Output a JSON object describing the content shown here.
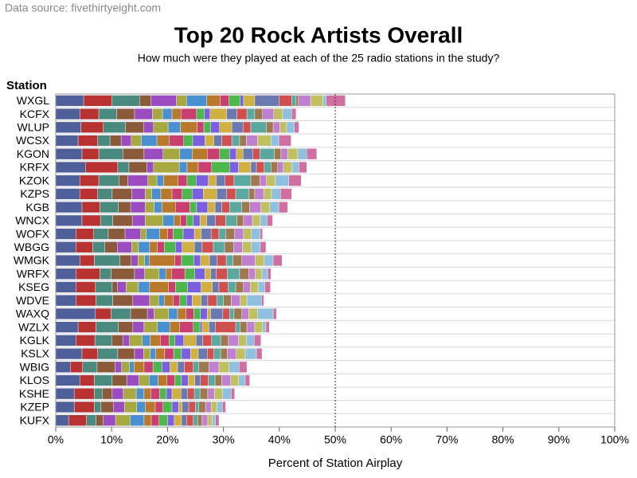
{
  "chart_data": {
    "type": "stacked-bar-horizontal",
    "source": "Data source: fivethirtyeight.com",
    "title": "Top 20 Rock Artists Overall",
    "subtitle": "How much were they played at each of the 25 radio stations in the study?",
    "y_label": "Station",
    "x_label": "Percent of Station Airplay",
    "categories": [
      "WXGL",
      "KCFX",
      "WLUP",
      "WCSX",
      "KGON",
      "KRFX",
      "KZOK",
      "KZPS",
      "KGB",
      "WNCX",
      "WOFX",
      "WBGG",
      "WMGK",
      "WRFX",
      "KSEG",
      "WDVE",
      "WAXQ",
      "WZLX",
      "KGLK",
      "KSLX",
      "WBIG",
      "KLOS",
      "KSHE",
      "KZEP",
      "KUFX"
    ],
    "xlim": [
      0,
      100
    ],
    "xticks": [
      {
        "value": 0,
        "label": "0%"
      },
      {
        "value": 10,
        "label": "10%"
      },
      {
        "value": 20,
        "label": "20%"
      },
      {
        "value": 30,
        "label": "30%"
      },
      {
        "value": 40,
        "label": "40%"
      },
      {
        "value": 50,
        "label": "50%"
      },
      {
        "value": 60,
        "label": "60%"
      },
      {
        "value": 70,
        "label": "70%"
      },
      {
        "value": 80,
        "label": "80%"
      },
      {
        "value": 90,
        "label": "90%"
      },
      {
        "value": 100,
        "label": "100%"
      }
    ],
    "reference_line": 50,
    "grid": true,
    "series": [
      {
        "color": "#4f5f9a",
        "values": [
          5,
          4.3,
          4.5,
          4,
          4.7,
          5.3,
          4.3,
          4.3,
          4.7,
          4.7,
          3.6,
          3.6,
          4.3,
          3.6,
          3.6,
          3.6,
          7.1,
          4,
          3.6,
          4.7,
          2.6,
          4.3,
          3.3,
          3.3,
          2.3
        ]
      },
      {
        "color": "#b83232",
        "values": [
          5,
          3.4,
          4,
          3.5,
          3,
          5.8,
          3.4,
          3.2,
          3.2,
          3.3,
          3.2,
          3,
          2.6,
          4.3,
          3.5,
          3.6,
          2.8,
          3.2,
          3.4,
          2.8,
          2.2,
          2.6,
          3.6,
          3.6,
          3.2
        ]
      },
      {
        "color": "#4a8a7e",
        "values": [
          5,
          3.2,
          4,
          2.2,
          4.3,
          2,
          3.6,
          2.6,
          3.3,
          2.2,
          2.6,
          2.2,
          4.6,
          2,
          3,
          3,
          3.5,
          4,
          3,
          3.6,
          2.6,
          3.2,
          1.4,
          1.2,
          1.7
        ]
      },
      {
        "color": "#8a5a3a",
        "values": [
          2,
          3.2,
          3.2,
          2,
          3.8,
          3.2,
          1.6,
          3.5,
          2.2,
          3.5,
          3,
          2.2,
          2,
          4.2,
          0.9,
          3.6,
          3,
          2.6,
          2,
          3,
          3.2,
          2.6,
          1.8,
          2.2,
          1.3
        ]
      },
      {
        "color": "#9a4cc0",
        "values": [
          4.6,
          3.2,
          1.8,
          1.8,
          3.4,
          1.2,
          3.6,
          2.4,
          2.6,
          2.3,
          2.8,
          2.6,
          1.2,
          1.8,
          1.6,
          3,
          1.2,
          2,
          1.2,
          1.6,
          1.2,
          2.2,
          2,
          2,
          2.2
        ]
      },
      {
        "color": "#a8a840",
        "values": [
          1.8,
          1.8,
          2.6,
          1.8,
          3,
          4.6,
          1.6,
          1.2,
          1.6,
          3.2,
          1,
          1.2,
          1.2,
          2.6,
          2.2,
          1.6,
          2.6,
          2.4,
          2.3,
          1.2,
          1.4,
          1.8,
          2.3,
          2.2,
          2.6
        ]
      },
      {
        "color": "#4a90d0",
        "values": [
          3.6,
          1.7,
          2.2,
          2.8,
          2.2,
          1.4,
          1.2,
          1.6,
          1.4,
          2,
          2.4,
          2,
          0.8,
          1.2,
          2,
          1,
          1.6,
          2.2,
          1.4,
          1,
          0.8,
          1.6,
          1.4,
          1.5,
          2.5
        ]
      },
      {
        "color": "#b87a2a",
        "values": [
          2.4,
          1.6,
          3,
          2.2,
          2.7,
          2,
          2.6,
          2,
          2.4,
          1.1,
          1.4,
          1.4,
          4.6,
          1,
          3.4,
          1.6,
          1.5,
          1.8,
          1.8,
          1.6,
          1.8,
          1.6,
          1.2,
          1.8,
          1.3
        ]
      },
      {
        "color": "#c84070",
        "values": [
          1.6,
          2.8,
          1.2,
          2.6,
          2.2,
          2.4,
          1.6,
          1.8,
          2.6,
          1.1,
          1,
          1.2,
          1.2,
          2.4,
          1.2,
          1.2,
          1.4,
          2.4,
          1.6,
          1.6,
          1.6,
          1.4,
          1.6,
          1.4,
          1.4
        ]
      },
      {
        "color": "#4cb84c",
        "values": [
          2,
          1.4,
          1.2,
          1.6,
          1.8,
          3.2,
          1.6,
          1.8,
          1.2,
          1.2,
          1.8,
          2,
          2.2,
          1.8,
          2.2,
          1.2,
          1.2,
          1.2,
          1,
          1.4,
          1.6,
          1.2,
          1.2,
          1.6,
          1.5
        ]
      },
      {
        "color": "#7a60e0",
        "values": [
          0.6,
          1,
          1.6,
          2.2,
          1.2,
          1.6,
          2.2,
          2,
          2,
          1.2,
          2,
          1.2,
          1.2,
          1.8,
          2.4,
          1,
          1.2,
          0.4,
          1.6,
          1.6,
          1.4,
          1.2,
          1,
          1.2,
          1.2
        ]
      },
      {
        "color": "#d0b040",
        "values": [
          2,
          3,
          2.2,
          1.6,
          1.2,
          2.2,
          1.4,
          2.4,
          1.3,
          1.2,
          1.2,
          2.2,
          1.6,
          1,
          2,
          1.6,
          0.6,
          1.2,
          2.2,
          1.4,
          1.4,
          1.2,
          1.6,
          0.6,
          1.3
        ]
      },
      {
        "color": "#6a7ab0",
        "values": [
          4.4,
          1.8,
          2,
          1.4,
          1.8,
          1,
          1.6,
          1.8,
          1.2,
          1.6,
          1.8,
          1.4,
          1.4,
          1,
          1.2,
          1.2,
          2.2,
          1.2,
          1.2,
          1.6,
          1.2,
          1,
          1.2,
          1.2,
          0.9
        ]
      },
      {
        "color": "#d05050",
        "values": [
          2.2,
          1.8,
          1.4,
          1.8,
          1.2,
          1.4,
          1.6,
          1.6,
          1.4,
          1.8,
          1.4,
          2,
          1.6,
          2,
          1.6,
          1.6,
          1.2,
          3.6,
          1.6,
          1.2,
          1.6,
          1.4,
          1.2,
          1.2,
          1.2
        ]
      },
      {
        "color": "#5aa8a0",
        "values": [
          0.8,
          1.4,
          2.8,
          1.4,
          2.6,
          1.2,
          3,
          2.4,
          2.2,
          2,
          1.2,
          2,
          1.2,
          2.2,
          1.4,
          1.2,
          0.8,
          0.8,
          1.6,
          1.2,
          1,
          1.2,
          1,
          0.6,
          0.8
        ]
      },
      {
        "color": "#a07850",
        "values": [
          0.4,
          1.4,
          1.2,
          1.2,
          1.2,
          1.2,
          1.6,
          1,
          1.4,
          1.2,
          1.6,
          1.6,
          1.6,
          1.6,
          1.4,
          1.4,
          1.4,
          1.2,
          1.4,
          1.2,
          1.8,
          1.2,
          1.4,
          1.2,
          0.8
        ]
      },
      {
        "color": "#c080d0",
        "values": [
          2.2,
          2,
          1.2,
          2,
          1.2,
          1,
          1.2,
          1.6,
          2,
          1.6,
          1.6,
          1.6,
          2.4,
          1.2,
          1.2,
          1.6,
          1.2,
          1.4,
          1.8,
          1.6,
          1.8,
          1.6,
          1.2,
          1,
          1
        ]
      },
      {
        "color": "#c0c060",
        "values": [
          2.2,
          1.6,
          1.2,
          2.4,
          1.8,
          1.6,
          1.6,
          1.4,
          1.6,
          1.4,
          1.4,
          1.6,
          1.6,
          1.2,
          1.4,
          1.2,
          1.6,
          1.4,
          1.4,
          1.6,
          1.8,
          1.4,
          1.4,
          1,
          0.8
        ]
      },
      {
        "color": "#90c0e0",
        "values": [
          0.6,
          1.6,
          1.4,
          1.4,
          1.6,
          1.2,
          2.4,
          1.6,
          1.6,
          1.2,
          1.6,
          1.6,
          1.6,
          1,
          1.2,
          2.6,
          2.8,
          0.6,
          1.4,
          2,
          1.8,
          1.2,
          1.6,
          1,
          0.6
        ]
      },
      {
        "color": "#d070a0",
        "values": [
          3.4,
          0.8,
          0.8,
          2.2,
          1.8,
          1.4,
          2.2,
          2,
          1.6,
          1,
          0.4,
          1,
          1.6,
          0.6,
          1,
          0.4,
          0.6,
          0.6,
          1.2,
          1,
          1.4,
          0.8,
          0.6,
          0.6,
          0.6
        ]
      }
    ]
  }
}
